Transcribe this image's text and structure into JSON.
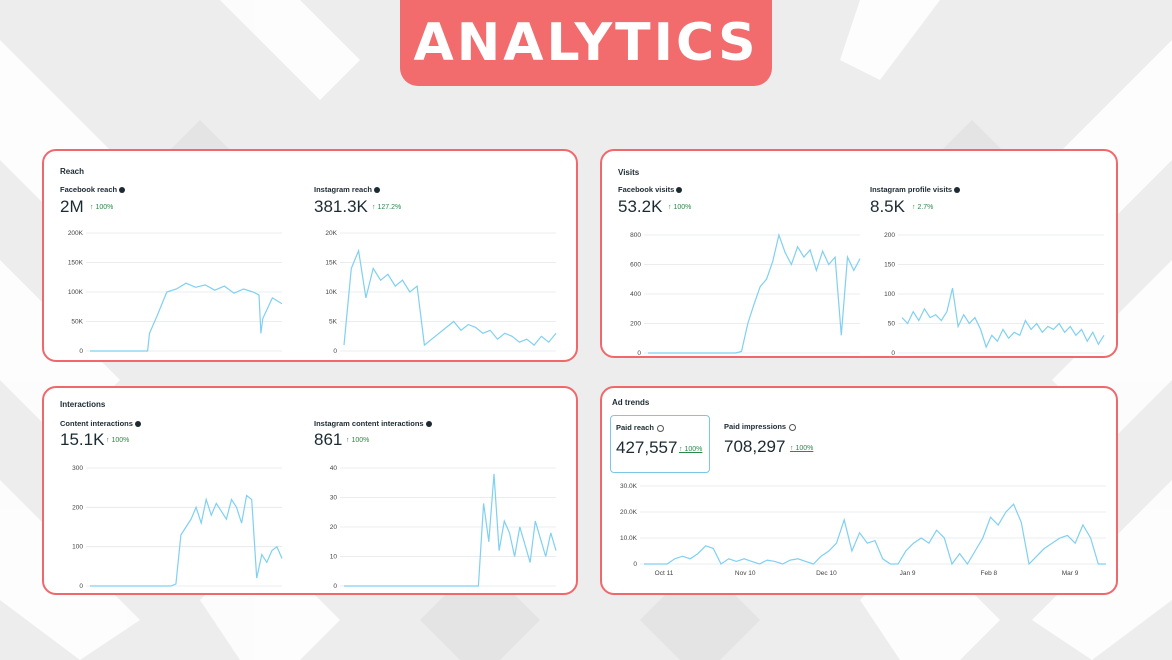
{
  "banner": {
    "title": "ANALYTICS"
  },
  "reach": {
    "title": "Reach",
    "metrics": [
      {
        "label": "Facebook reach",
        "value": "2M",
        "change": "↑ 100%"
      },
      {
        "label": "Instagram reach",
        "value": "381.3K",
        "change": "↑ 127.2%"
      }
    ]
  },
  "visits": {
    "title": "Visits",
    "metrics": [
      {
        "label": "Facebook visits",
        "value": "53.2K",
        "change": "↑ 100%"
      },
      {
        "label": "Instagram profile visits",
        "value": "8.5K",
        "change": "↑ 2.7%"
      }
    ]
  },
  "interactions": {
    "title": "Interactions",
    "metrics": [
      {
        "label": "Content interactions",
        "value": "15.1K",
        "change": "↑ 100%"
      },
      {
        "label": "Instagram content interactions",
        "value": "861",
        "change": "↑ 100%"
      }
    ]
  },
  "ads": {
    "title": "Ad trends",
    "metrics": [
      {
        "label": "Paid reach",
        "value": "427,557",
        "change": "↑ 100%"
      },
      {
        "label": "Paid impressions",
        "value": "708,297",
        "change": "↑ 100%"
      }
    ]
  },
  "colors": {
    "accent": "#f26b6d",
    "line": "#7fd0f2",
    "positive": "#2a8a4a"
  },
  "chart_data": [
    {
      "id": "fb_reach",
      "type": "line",
      "ylim": [
        0,
        200000
      ],
      "yticks": [
        "200K",
        "150K",
        "100K",
        "50K",
        "0"
      ],
      "x": [
        0,
        0.1,
        0.2,
        0.3,
        0.31,
        0.35,
        0.4,
        0.45,
        0.5,
        0.55,
        0.6,
        0.65,
        0.7,
        0.75,
        0.8,
        0.85,
        0.88,
        0.89,
        0.9,
        0.95,
        1
      ],
      "values": [
        0,
        0,
        0,
        0,
        30000,
        60000,
        100000,
        105000,
        115000,
        108000,
        112000,
        103000,
        110000,
        98000,
        105000,
        100000,
        95000,
        30000,
        55000,
        90000,
        80000
      ]
    },
    {
      "id": "ig_reach",
      "type": "line",
      "ylim": [
        0,
        20000
      ],
      "yticks": [
        "20K",
        "15K",
        "10K",
        "5K",
        "0"
      ],
      "values": [
        1000,
        14000,
        17000,
        9000,
        14000,
        12000,
        13000,
        11000,
        12000,
        10000,
        11000,
        1000,
        2000,
        3000,
        4000,
        5000,
        3500,
        4500,
        4000,
        3000,
        3500,
        2000,
        3000,
        2500,
        1500,
        2000,
        1000,
        2500,
        1500,
        3000
      ]
    },
    {
      "id": "fb_visits",
      "type": "line",
      "ylim": [
        0,
        800
      ],
      "yticks": [
        "800",
        "600",
        "400",
        "200",
        "0"
      ],
      "values": [
        0,
        0,
        0,
        0,
        0,
        0,
        0,
        0,
        0,
        0,
        0,
        0,
        0,
        0,
        0,
        10,
        200,
        330,
        450,
        500,
        620,
        800,
        680,
        600,
        720,
        650,
        700,
        560,
        690,
        600,
        650,
        120,
        650,
        560,
        640
      ]
    },
    {
      "id": "ig_visits",
      "type": "line",
      "ylim": [
        0,
        200
      ],
      "yticks": [
        "200",
        "150",
        "100",
        "50",
        "0"
      ],
      "values": [
        60,
        50,
        70,
        55,
        75,
        60,
        65,
        55,
        70,
        110,
        45,
        65,
        50,
        60,
        40,
        10,
        30,
        20,
        40,
        25,
        35,
        30,
        55,
        40,
        50,
        35,
        45,
        40,
        50,
        35,
        45,
        30,
        40,
        20,
        35,
        15,
        30
      ]
    },
    {
      "id": "content_interactions",
      "type": "line",
      "ylim": [
        0,
        300
      ],
      "yticks": [
        "300",
        "200",
        "100",
        "0"
      ],
      "values": [
        0,
        0,
        0,
        0,
        0,
        0,
        0,
        0,
        0,
        0,
        0,
        0,
        0,
        0,
        0,
        0,
        0,
        5,
        130,
        150,
        170,
        200,
        160,
        220,
        180,
        210,
        190,
        170,
        220,
        200,
        160,
        230,
        220,
        20,
        80,
        60,
        90,
        100,
        70
      ]
    },
    {
      "id": "ig_content_interactions",
      "type": "line",
      "ylim": [
        0,
        40
      ],
      "yticks": [
        "40",
        "30",
        "20",
        "10",
        "0"
      ],
      "values": [
        0,
        0,
        0,
        0,
        0,
        0,
        0,
        0,
        0,
        0,
        0,
        0,
        0,
        0,
        0,
        0,
        0,
        0,
        0,
        0,
        0,
        0,
        0,
        0,
        0,
        0,
        0,
        28,
        15,
        38,
        12,
        22,
        18,
        10,
        20,
        14,
        8,
        22,
        16,
        10,
        18,
        12
      ]
    },
    {
      "id": "paid_reach",
      "type": "line",
      "ylim": [
        0,
        30000
      ],
      "yticks": [
        "30.0K",
        "20.0K",
        "10.0K",
        "0"
      ],
      "xticks": [
        "Oct 11",
        "Nov 10",
        "Dec 10",
        "Jan 9",
        "Feb 8",
        "Mar 9"
      ],
      "values": [
        0,
        0,
        0,
        0,
        2000,
        3000,
        2000,
        4000,
        7000,
        6000,
        0,
        2000,
        1000,
        2000,
        1000,
        0,
        1500,
        1000,
        0,
        1500,
        2000,
        1000,
        0,
        3000,
        5000,
        8000,
        17000,
        5000,
        12000,
        8000,
        9000,
        2000,
        0,
        0,
        5000,
        8000,
        10000,
        8000,
        13000,
        10000,
        0,
        4000,
        0,
        5000,
        10000,
        18000,
        15000,
        20000,
        23000,
        16000,
        0,
        3000,
        6000,
        8000,
        10000,
        11000,
        8000,
        15000,
        10000,
        0,
        0
      ]
    }
  ]
}
